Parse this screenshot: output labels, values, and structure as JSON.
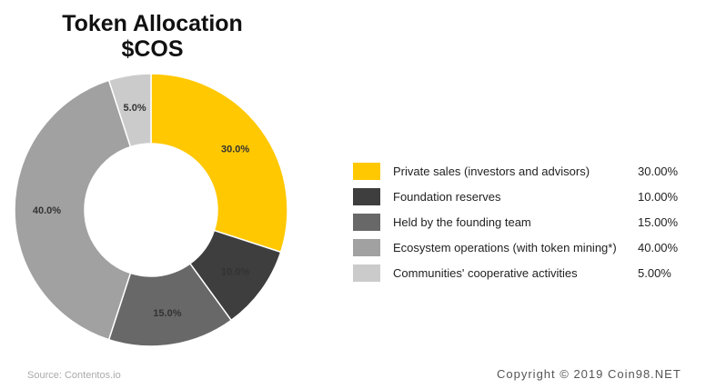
{
  "title_line1": "Token Allocation",
  "title_line2": "$COS",
  "chart_data": {
    "type": "pie",
    "donut": true,
    "title": "Token Allocation $COS",
    "slices": [
      {
        "label": "Private sales (investors and advisors)",
        "value": 30.0,
        "chart_label": "30.0%",
        "legend_value": "30.00%",
        "color": "#FFC800"
      },
      {
        "label": "Foundation reserves",
        "value": 10.0,
        "chart_label": "10.0%",
        "legend_value": "10.00%",
        "color": "#3E3E3E"
      },
      {
        "label": "Held by the founding team",
        "value": 15.0,
        "chart_label": "15.0%",
        "legend_value": "15.00%",
        "color": "#686868"
      },
      {
        "label": "Ecosystem operations (with token mining*)",
        "value": 40.0,
        "chart_label": "40.0%",
        "legend_value": "40.00%",
        "color": "#A1A1A1"
      },
      {
        "label": "Communities' cooperative activities",
        "value": 5.0,
        "chart_label": "5.0%",
        "legend_value": "5.00%",
        "color": "#CBCBCB"
      }
    ],
    "legend_position": "right"
  },
  "source": "Source: Contentos.io",
  "copyright": "Copyright © 2019 Coin98.NET"
}
